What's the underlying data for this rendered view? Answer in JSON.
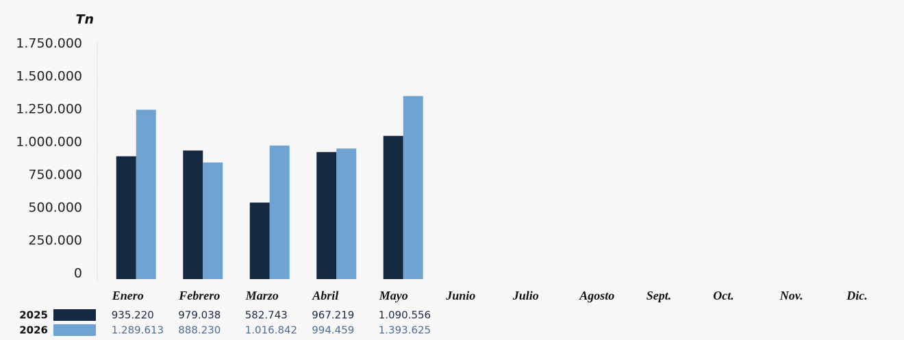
{
  "chart_data": {
    "type": "bar",
    "y_label": "Tn",
    "categories": [
      "Enero",
      "Febrero",
      "Marzo",
      "Abril",
      "Mayo",
      "Junio",
      "Julio",
      "Agosto",
      "Sept.",
      "Oct.",
      "Nov.",
      "Dic."
    ],
    "series": [
      {
        "name": "2025",
        "color": "#152842",
        "values": [
          935220,
          979038,
          582743,
          967219,
          1090556,
          null,
          null,
          null,
          null,
          null,
          null,
          null
        ],
        "value_labels": [
          "935.220",
          "979.038",
          "582.743",
          "967.219",
          "1.090.556",
          null,
          null,
          null,
          null,
          null,
          null,
          null
        ]
      },
      {
        "name": "2026",
        "color": "#6fa3d2",
        "values": [
          1289613,
          888230,
          1016842,
          994459,
          1393625,
          null,
          null,
          null,
          null,
          null,
          null,
          null
        ],
        "value_labels": [
          "1.289.613",
          "888.230",
          "1.016.842",
          "994.459",
          "1.393.625",
          null,
          null,
          null,
          null,
          null,
          null,
          null
        ]
      }
    ],
    "ylim": [
      0,
      1750000
    ],
    "yticks": [
      0,
      {
        "value": 250000,
        "label": "250.000"
      },
      {
        "value": 500000,
        "label": "500.000"
      },
      {
        "value": 750000,
        "label": "750.000"
      },
      {
        "value": 1000000,
        "label": "1.000.000"
      },
      {
        "value": 1250000,
        "label": "1.250.000"
      },
      {
        "value": 1500000,
        "label": "1.500.000"
      },
      {
        "value": 1750000,
        "label": "1.750.000"
      }
    ],
    "grid": false
  }
}
